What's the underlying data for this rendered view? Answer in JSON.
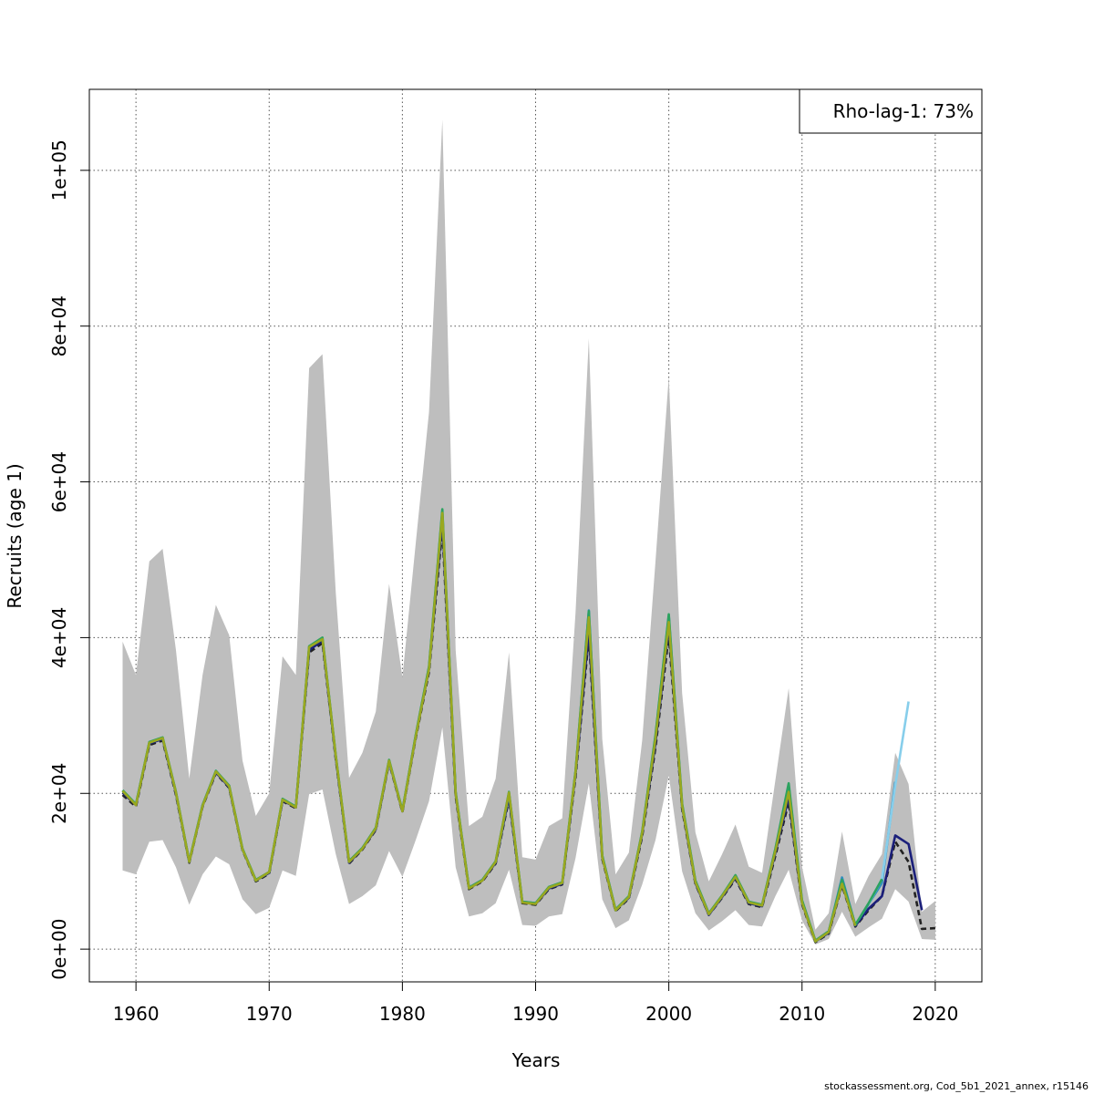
{
  "chart_data": {
    "type": "line",
    "title": "",
    "xlabel": "Years",
    "ylabel": "Recruits (age 1)",
    "xlim": [
      1956.5,
      2023.5
    ],
    "ylim": [
      -4200,
      110400
    ],
    "xticks": [
      1960,
      1970,
      1980,
      1990,
      2000,
      2010,
      2020
    ],
    "xtick_labels": [
      "1960",
      "1970",
      "1980",
      "1990",
      "2000",
      "2010",
      "2020"
    ],
    "yticks": [
      0,
      20000,
      40000,
      60000,
      80000,
      100000
    ],
    "ytick_labels": [
      "0e+00",
      "2e+04",
      "4e+04",
      "6e+04",
      "8e+04",
      "1e+05"
    ],
    "grid": true,
    "legend": {
      "position": "top-right",
      "text": "Rho-lag-1: 73%"
    },
    "confidence_band": {
      "x": [
        1959,
        1960,
        1961,
        1962,
        1963,
        1964,
        1965,
        1966,
        1967,
        1968,
        1969,
        1970,
        1971,
        1972,
        1973,
        1974,
        1975,
        1976,
        1977,
        1978,
        1979,
        1980,
        1981,
        1982,
        1983,
        1984,
        1985,
        1986,
        1987,
        1988,
        1989,
        1990,
        1991,
        1992,
        1993,
        1994,
        1995,
        1996,
        1997,
        1998,
        1999,
        2000,
        2001,
        2002,
        2003,
        2004,
        2005,
        2006,
        2007,
        2008,
        2009,
        2010,
        2011,
        2012,
        2013,
        2014,
        2015,
        2016,
        2017,
        2018,
        2019,
        2020
      ],
      "upper": [
        39500,
        35200,
        49800,
        51400,
        38400,
        21900,
        35200,
        44200,
        40300,
        24200,
        17100,
        20000,
        37600,
        35200,
        74600,
        76400,
        45800,
        22000,
        25200,
        30500,
        46900,
        34900,
        52100,
        69000,
        106500,
        38400,
        15800,
        17000,
        21900,
        38100,
        11800,
        11500,
        15800,
        16800,
        43200,
        78400,
        27000,
        9600,
        12400,
        26800,
        49800,
        73500,
        32900,
        15000,
        8700,
        12200,
        16000,
        10600,
        9800,
        21700,
        33500,
        10600,
        2500,
        4600,
        15100,
        5800,
        9400,
        12200,
        25200,
        21200,
        4800,
        6200
      ],
      "lower": [
        10100,
        9600,
        13800,
        14000,
        10500,
        5700,
        9600,
        11900,
        10900,
        6400,
        4500,
        5300,
        10100,
        9400,
        19900,
        20500,
        12200,
        5800,
        6800,
        8200,
        12600,
        9300,
        14000,
        19000,
        28500,
        10500,
        4200,
        4600,
        5900,
        10200,
        3100,
        3000,
        4200,
        4500,
        11700,
        21300,
        6400,
        2700,
        3700,
        8300,
        14000,
        22300,
        10000,
        4600,
        2400,
        3600,
        5000,
        3100,
        2900,
        6800,
        10200,
        3700,
        600,
        1300,
        4800,
        1600,
        2800,
        3900,
        7700,
        6100,
        1300,
        1200
      ]
    },
    "series": [
      {
        "color": "#222222",
        "dashed": true,
        "x": [
          1959,
          1960,
          1961,
          1962,
          1963,
          1964,
          1965,
          1966,
          1967,
          1968,
          1969,
          1970,
          1971,
          1972,
          1973,
          1974,
          1975,
          1976,
          1977,
          1978,
          1979,
          1980,
          1981,
          1982,
          1983,
          1984,
          1985,
          1986,
          1987,
          1988,
          1989,
          1990,
          1991,
          1992,
          1993,
          1994,
          1995,
          1996,
          1997,
          1998,
          1999,
          2000,
          2001,
          2002,
          2003,
          2004,
          2005,
          2006,
          2007,
          2008,
          2009,
          2010,
          2011,
          2012,
          2013,
          2014,
          2015,
          2016,
          2017,
          2018,
          2019,
          2020
        ],
        "values": [
          19800,
          18300,
          26200,
          26800,
          19800,
          11100,
          18300,
          22600,
          20700,
          12700,
          8700,
          9700,
          19000,
          18100,
          38100,
          39300,
          24400,
          11000,
          12800,
          15300,
          24000,
          17600,
          27100,
          35600,
          54000,
          19600,
          7700,
          8700,
          11000,
          19300,
          5900,
          5700,
          7700,
          8300,
          22100,
          40100,
          11600,
          4900,
          6500,
          14500,
          25900,
          40300,
          18000,
          8400,
          4400,
          6600,
          9000,
          5800,
          5400,
          12000,
          18900,
          5800,
          900,
          2000,
          8200,
          2900,
          5000,
          6800,
          13800,
          11200,
          2600,
          2700
        ]
      },
      {
        "color": "#1b1f7a",
        "dashed": false,
        "x": [
          1959,
          1960,
          1961,
          1962,
          1963,
          1964,
          1965,
          1966,
          1967,
          1968,
          1969,
          1970,
          1971,
          1972,
          1973,
          1974,
          1975,
          1976,
          1977,
          1978,
          1979,
          1980,
          1981,
          1982,
          1983,
          1984,
          1985,
          1986,
          1987,
          1988,
          1989,
          1990,
          1991,
          1992,
          1993,
          1994,
          1995,
          1996,
          1997,
          1998,
          1999,
          2000,
          2001,
          2002,
          2003,
          2004,
          2005,
          2006,
          2007,
          2008,
          2009,
          2010,
          2011,
          2012,
          2013,
          2014,
          2015,
          2016,
          2017,
          2018,
          2019
        ],
        "values": [
          20100,
          18500,
          26400,
          27000,
          20000,
          11200,
          18400,
          22700,
          20800,
          12800,
          8800,
          9800,
          19100,
          18200,
          38400,
          39600,
          24600,
          11100,
          12900,
          15400,
          24100,
          17700,
          27300,
          36000,
          55000,
          19900,
          7800,
          8800,
          11100,
          19600,
          6000,
          5800,
          7800,
          8400,
          22500,
          41000,
          11800,
          5000,
          6600,
          14800,
          26500,
          41500,
          18300,
          8500,
          4400,
          6700,
          9200,
          5900,
          5500,
          12400,
          19500,
          6000,
          1000,
          2100,
          8400,
          3000,
          5200,
          6800,
          14600,
          13500,
          5000
        ]
      },
      {
        "color": "#2f8dbd",
        "dashed": false,
        "x": [
          1959,
          1960,
          1961,
          1962,
          1963,
          1964,
          1965,
          1966,
          1967,
          1968,
          1969,
          1970,
          1971,
          1972,
          1973,
          1974,
          1975,
          1976,
          1977,
          1978,
          1979,
          1980,
          1981,
          1982,
          1983,
          1984,
          1985,
          1986,
          1987,
          1988,
          1989,
          1990,
          1991,
          1992,
          1993,
          1994,
          1995,
          1996,
          1997,
          1998,
          1999,
          2000,
          2001,
          2002,
          2003,
          2004,
          2005,
          2006,
          2007,
          2008,
          2009,
          2010,
          2011,
          2012,
          2013,
          2014,
          2015,
          2016,
          2017
        ],
        "values": [
          20300,
          18600,
          26500,
          27100,
          20100,
          11200,
          18500,
          22800,
          20900,
          12800,
          8800,
          9900,
          19200,
          18300,
          38800,
          39900,
          24800,
          11200,
          13000,
          15500,
          24200,
          17800,
          27400,
          36200,
          56200,
          20100,
          7900,
          8900,
          11200,
          20000,
          6100,
          5900,
          7900,
          8500,
          22800,
          43500,
          12000,
          5000,
          6700,
          15000,
          27300,
          42800,
          18500,
          8700,
          4500,
          6800,
          9400,
          6000,
          5600,
          12700,
          21000,
          6200,
          1000,
          2200,
          9200,
          3100,
          5800,
          8500,
          21500
        ]
      },
      {
        "color": "#87ceeb",
        "dashed": false,
        "x": [
          2015,
          2016,
          2017,
          2018
        ],
        "values": [
          5800,
          9000,
          21000,
          31800
        ]
      },
      {
        "color": "#2ca25f",
        "dashed": false,
        "x": [
          1959,
          1960,
          1961,
          1962,
          1963,
          1964,
          1965,
          1966,
          1967,
          1968,
          1969,
          1970,
          1971,
          1972,
          1973,
          1974,
          1975,
          1976,
          1977,
          1978,
          1979,
          1980,
          1981,
          1982,
          1983,
          1984,
          1985,
          1986,
          1987,
          1988,
          1989,
          1990,
          1991,
          1992,
          1993,
          1994,
          1995,
          1996,
          1997,
          1998,
          1999,
          2000,
          2001,
          2002,
          2003,
          2004,
          2005,
          2006,
          2007,
          2008,
          2009,
          2010,
          2011,
          2012,
          2013,
          2014,
          2015,
          2016
        ],
        "values": [
          20400,
          18600,
          26600,
          27200,
          20200,
          11300,
          18500,
          22900,
          21000,
          12900,
          8900,
          9900,
          19300,
          18300,
          38900,
          40000,
          24900,
          11300,
          13000,
          15600,
          24300,
          17800,
          27500,
          36300,
          56500,
          20200,
          7900,
          8900,
          11300,
          20200,
          6100,
          5900,
          8000,
          8600,
          22900,
          43400,
          12000,
          5100,
          6800,
          15100,
          27500,
          43000,
          18700,
          8800,
          4600,
          6900,
          9500,
          6100,
          5700,
          12900,
          21300,
          6300,
          1100,
          2300,
          8900,
          3100,
          5900,
          9000
        ]
      },
      {
        "color": "#9aa81f",
        "dashed": false,
        "x": [
          1959,
          1960,
          1961,
          1962,
          1963,
          1964,
          1965,
          1966,
          1967,
          1968,
          1969,
          1970,
          1971,
          1972,
          1973,
          1974,
          1975,
          1976,
          1977,
          1978,
          1979,
          1980,
          1981,
          1982,
          1983,
          1984,
          1985,
          1986,
          1987,
          1988,
          1989,
          1990,
          1991,
          1992,
          1993,
          1994,
          1995,
          1996,
          1997,
          1998,
          1999,
          2000,
          2001,
          2002,
          2003,
          2004,
          2005,
          2006,
          2007,
          2008,
          2009,
          2010,
          2011,
          2012,
          2013,
          2014
        ],
        "values": [
          20300,
          18500,
          26500,
          27100,
          20100,
          11200,
          18400,
          22800,
          20900,
          12800,
          8800,
          9900,
          19200,
          18200,
          38800,
          39800,
          24800,
          11200,
          12900,
          15500,
          24200,
          17700,
          27300,
          36000,
          56000,
          20000,
          7800,
          8800,
          11200,
          20100,
          6000,
          5800,
          7900,
          8500,
          22700,
          42600,
          11800,
          5000,
          6700,
          14900,
          27000,
          42000,
          18400,
          8600,
          4500,
          6800,
          9300,
          6000,
          5600,
          12600,
          20200,
          6000,
          1000,
          2200,
          8400,
          3000
        ]
      }
    ]
  },
  "footer": "stockassessment.org, Cod_5b1_2021_annex, r15146"
}
